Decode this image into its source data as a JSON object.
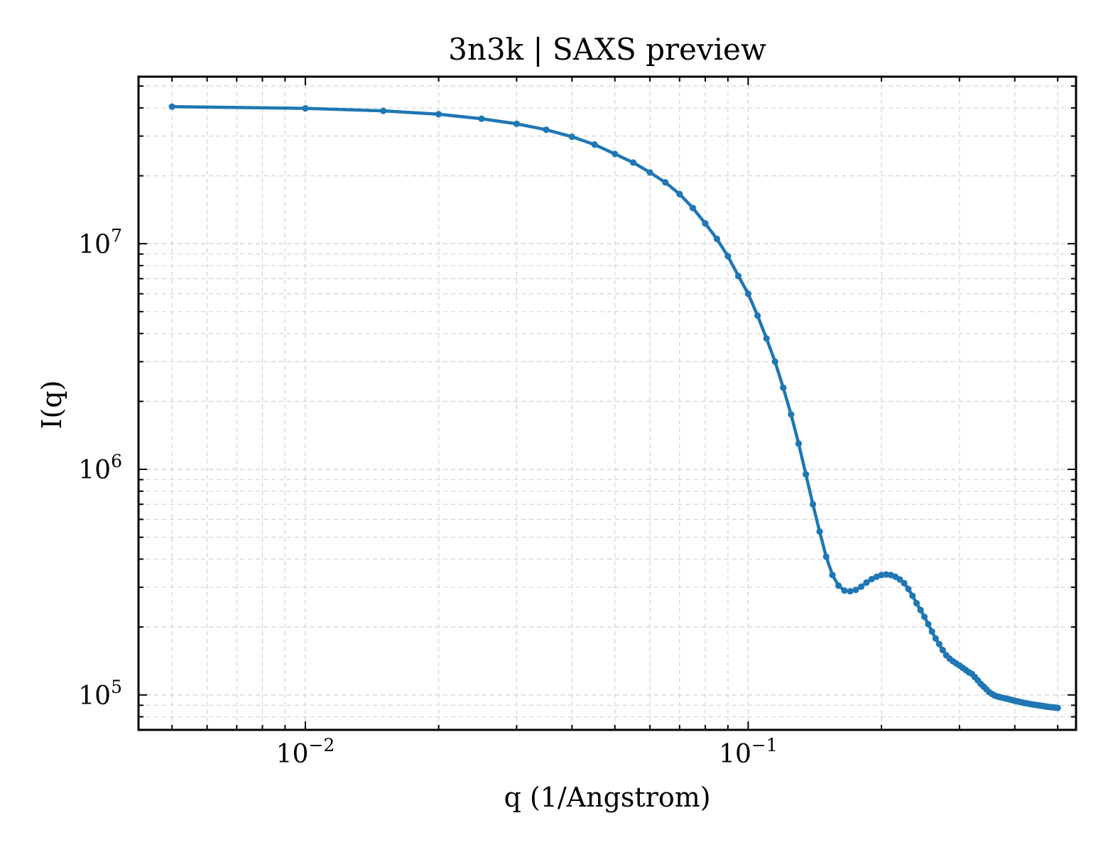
{
  "chart_data": {
    "type": "line",
    "title": "3n3k | SAXS preview",
    "xlabel": "q (1/Angstrom)",
    "ylabel": "I(q)",
    "xscale": "log",
    "yscale": "log",
    "xlim": [
      0.0042,
      0.55
    ],
    "ylim": [
      70000,
      55000000
    ],
    "grid": true,
    "legend": "none",
    "color": "#1f77b4",
    "x_ticks": [
      {
        "value": 0.01,
        "base": "10",
        "exp": "−2"
      },
      {
        "value": 0.1,
        "base": "10",
        "exp": "−1"
      }
    ],
    "y_ticks": [
      {
        "value": 100000,
        "base": "10",
        "exp": "5"
      },
      {
        "value": 1000000,
        "base": "10",
        "exp": "6"
      },
      {
        "value": 10000000,
        "base": "10",
        "exp": "7"
      }
    ],
    "series": [
      {
        "x": [
          0.005,
          0.01,
          0.015,
          0.02,
          0.025,
          0.03,
          0.035,
          0.04,
          0.045,
          0.05,
          0.055,
          0.06,
          0.065,
          0.07,
          0.075,
          0.08,
          0.085,
          0.09,
          0.095,
          0.1,
          0.105,
          0.11,
          0.115,
          0.12,
          0.125,
          0.13,
          0.135,
          0.14,
          0.145,
          0.15,
          0.155,
          0.16,
          0.165,
          0.17,
          0.175,
          0.18,
          0.185,
          0.19,
          0.195,
          0.2,
          0.205,
          0.21,
          0.215,
          0.22,
          0.225,
          0.23,
          0.235,
          0.24,
          0.245,
          0.25,
          0.255,
          0.26,
          0.265,
          0.27,
          0.275,
          0.28,
          0.285,
          0.29,
          0.295,
          0.3,
          0.305,
          0.31,
          0.315,
          0.32,
          0.325,
          0.33,
          0.335,
          0.34,
          0.345,
          0.35,
          0.355,
          0.36,
          0.365,
          0.37,
          0.375,
          0.38,
          0.385,
          0.39,
          0.395,
          0.4,
          0.405,
          0.41,
          0.415,
          0.42,
          0.425,
          0.43,
          0.435,
          0.44,
          0.445,
          0.45,
          0.455,
          0.46,
          0.465,
          0.47,
          0.475,
          0.48,
          0.485,
          0.49,
          0.495,
          0.5
        ],
        "y": [
          40500000,
          39800000,
          38800000,
          37500000,
          35800000,
          34000000,
          32000000,
          29800000,
          27500000,
          25000000,
          22900000,
          20700000,
          18700000,
          16600000,
          14400000,
          12300000,
          10500000,
          8800000,
          7200000,
          6000000,
          4800000,
          3800000,
          3000000,
          2300000,
          1750000,
          1300000,
          950000,
          700000,
          530000,
          410000,
          340000,
          305000,
          290000,
          288000,
          292000,
          302000,
          315000,
          326000,
          334000,
          340000,
          342000,
          340000,
          334000,
          325000,
          313000,
          295000,
          275000,
          255000,
          238000,
          222000,
          206000,
          191000,
          178000,
          168000,
          158000,
          150000,
          145000,
          141000,
          138000,
          135000,
          132000,
          129000,
          126000,
          124000,
          120000,
          116000,
          112000,
          109000,
          106000,
          103000,
          101000,
          99500,
          98500,
          97800,
          97200,
          96600,
          96000,
          95400,
          94800,
          94200,
          93700,
          93200,
          92700,
          92200,
          91800,
          91400,
          91000,
          90700,
          90400,
          90100,
          89800,
          89500,
          89200,
          88900,
          88600,
          88400,
          88200,
          88000,
          87800,
          87600
        ]
      }
    ]
  }
}
